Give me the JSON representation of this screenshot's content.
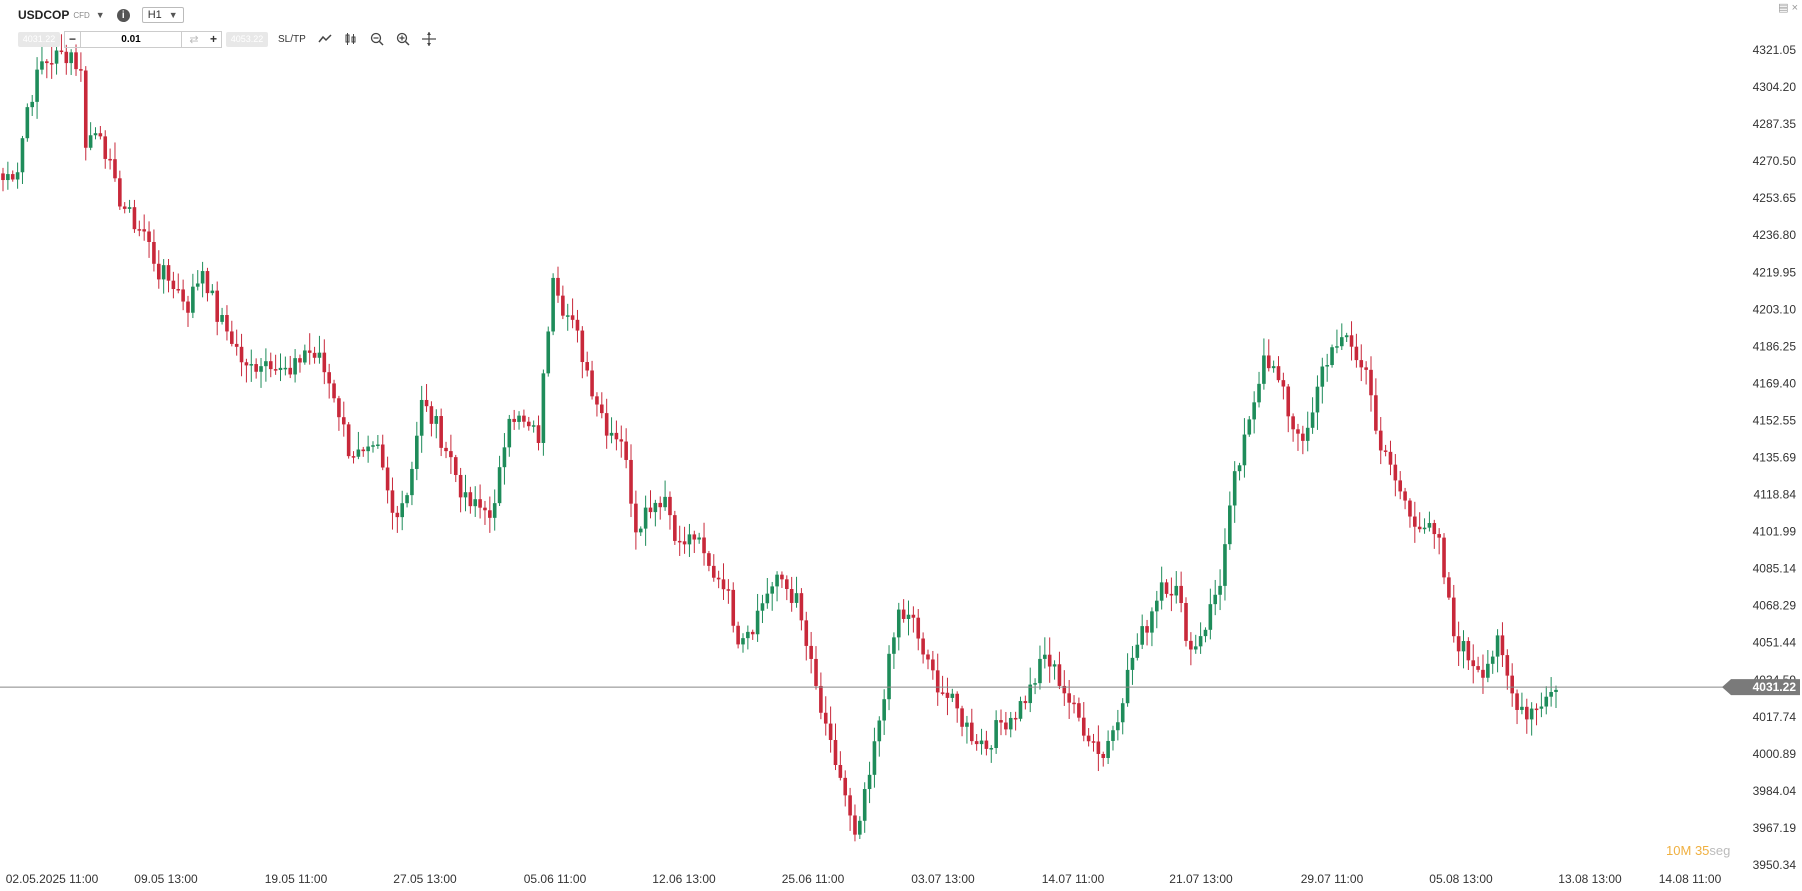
{
  "header": {
    "symbol": "USDCOP",
    "symbol_tag": "CFD",
    "timeframe": "H1"
  },
  "order_bar": {
    "sell_price": "4031.22",
    "quantity": "0.01",
    "buy_price": "4053.22",
    "sltp_label": "SL/TP"
  },
  "icons": [
    "caret-down-icon",
    "info-icon",
    "minus-icon",
    "swap-icon",
    "plus-icon",
    "line-chart-icon",
    "candles-icon",
    "zoom-out-icon",
    "zoom-in-icon",
    "crosshair-icon",
    "window-icon",
    "close-icon"
  ],
  "timer": {
    "minutes": "10",
    "min_unit": "M",
    "seconds": "35",
    "sec_unit": "seg"
  },
  "colors": {
    "up": "#1e8c5a",
    "down": "#c8283a",
    "price_line": "#888888",
    "price_label_bg": "#7a7a7a"
  },
  "chart_data": {
    "type": "candlestick",
    "current_price": 4031.22,
    "y_ticks": [
      "4321.05",
      "4304.20",
      "4287.35",
      "4270.50",
      "4253.65",
      "4236.80",
      "4219.95",
      "4203.10",
      "4186.25",
      "4169.40",
      "4152.55",
      "4135.69",
      "4118.84",
      "4101.99",
      "4085.14",
      "4068.29",
      "4051.44",
      "4034.59",
      "4017.74",
      "4000.89",
      "3984.04",
      "3967.19",
      "3950.34"
    ],
    "x_ticks": [
      "02.05.2025 11:00",
      "09.05 13:00",
      "19.05 11:00",
      "27.05 13:00",
      "05.06 11:00",
      "12.06 13:00",
      "25.06 11:00",
      "03.07 13:00",
      "14.07 11:00",
      "21.07 13:00",
      "29.07 11:00",
      "05.08 13:00",
      "13.08 13:00",
      "14.08 11:00"
    ],
    "ylim": [
      3950.34,
      4321.05
    ],
    "anchors": [
      [
        0,
        4262
      ],
      [
        3,
        4268
      ],
      [
        5,
        4295
      ],
      [
        8,
        4315
      ],
      [
        11,
        4318
      ],
      [
        14,
        4320
      ],
      [
        16,
        4310
      ],
      [
        17,
        4280
      ],
      [
        20,
        4285
      ],
      [
        23,
        4258
      ],
      [
        26,
        4245
      ],
      [
        29,
        4238
      ],
      [
        32,
        4220
      ],
      [
        35,
        4215
      ],
      [
        38,
        4205
      ],
      [
        41,
        4222
      ],
      [
        44,
        4200
      ],
      [
        47,
        4190
      ],
      [
        50,
        4175
      ],
      [
        53,
        4180
      ],
      [
        56,
        4180
      ],
      [
        59,
        4172
      ],
      [
        62,
        4185
      ],
      [
        65,
        4180
      ],
      [
        68,
        4165
      ],
      [
        71,
        4140
      ],
      [
        74,
        4135
      ],
      [
        77,
        4138
      ],
      [
        80,
        4110
      ],
      [
        83,
        4120
      ],
      [
        86,
        4160
      ],
      [
        89,
        4150
      ],
      [
        92,
        4135
      ],
      [
        95,
        4115
      ],
      [
        98,
        4112
      ],
      [
        101,
        4112
      ],
      [
        104,
        4158
      ],
      [
        107,
        4150
      ],
      [
        110,
        4145
      ],
      [
        113,
        4222
      ],
      [
        115,
        4205
      ],
      [
        118,
        4190
      ],
      [
        121,
        4168
      ],
      [
        124,
        4150
      ],
      [
        127,
        4145
      ],
      [
        130,
        4105
      ],
      [
        133,
        4115
      ],
      [
        136,
        4118
      ],
      [
        139,
        4095
      ],
      [
        142,
        4100
      ],
      [
        145,
        4085
      ],
      [
        148,
        4080
      ],
      [
        151,
        4055
      ],
      [
        154,
        4060
      ],
      [
        157,
        4075
      ],
      [
        160,
        4080
      ],
      [
        163,
        4070
      ],
      [
        166,
        4040
      ],
      [
        169,
        4010
      ],
      [
        172,
        3990
      ],
      [
        175,
        3960
      ],
      [
        178,
        3990
      ],
      [
        181,
        4030
      ],
      [
        184,
        4065
      ],
      [
        187,
        4060
      ],
      [
        190,
        4040
      ],
      [
        193,
        4030
      ],
      [
        196,
        4020
      ],
      [
        199,
        4010
      ],
      [
        202,
        4005
      ],
      [
        205,
        4015
      ],
      [
        208,
        4020
      ],
      [
        211,
        4030
      ],
      [
        214,
        4045
      ],
      [
        217,
        4035
      ],
      [
        220,
        4020
      ],
      [
        223,
        4010
      ],
      [
        226,
        4000
      ],
      [
        229,
        4020
      ],
      [
        232,
        4045
      ],
      [
        235,
        4060
      ],
      [
        238,
        4080
      ],
      [
        241,
        4075
      ],
      [
        244,
        4048
      ],
      [
        247,
        4060
      ],
      [
        250,
        4080
      ],
      [
        253,
        4125
      ],
      [
        256,
        4150
      ],
      [
        259,
        4185
      ],
      [
        262,
        4170
      ],
      [
        265,
        4150
      ],
      [
        268,
        4145
      ],
      [
        271,
        4175
      ],
      [
        274,
        4190
      ],
      [
        277,
        4185
      ],
      [
        280,
        4175
      ],
      [
        283,
        4140
      ],
      [
        286,
        4125
      ],
      [
        289,
        4110
      ],
      [
        292,
        4105
      ],
      [
        295,
        4095
      ],
      [
        298,
        4055
      ],
      [
        301,
        4045
      ],
      [
        304,
        4040
      ],
      [
        307,
        4050
      ],
      [
        310,
        4028
      ],
      [
        313,
        4020
      ],
      [
        316,
        4025
      ],
      [
        319,
        4030
      ]
    ]
  }
}
